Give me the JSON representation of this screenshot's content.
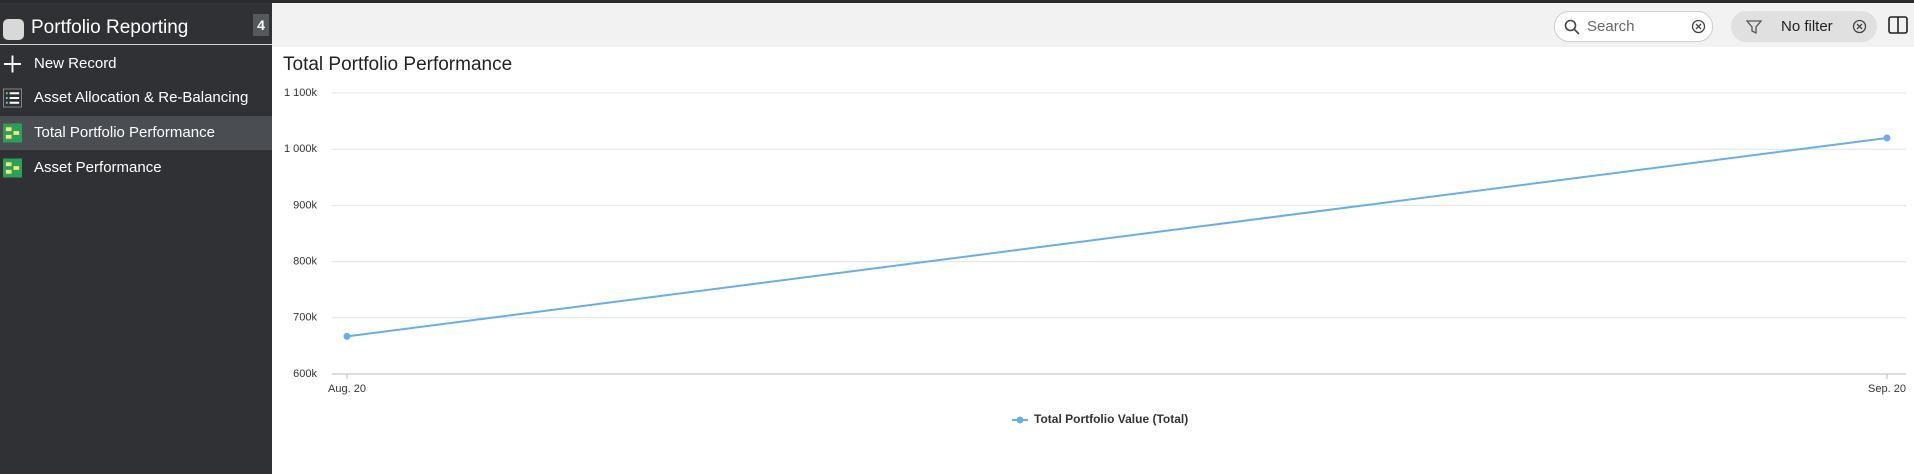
{
  "sidebar": {
    "title": "Portfolio Reporting",
    "badge": 4,
    "items": [
      "New Record",
      "Asset Allocation & Re-Balancing",
      "Total Portfolio Performance",
      "Asset Performance"
    ]
  },
  "toolbar": {
    "search_placeholder": "Search",
    "filter": "No filter"
  },
  "chart_data": {
    "type": "line",
    "title": "Total Portfolio Performance",
    "categories": [
      "Aug. 20",
      "Sep. 20"
    ],
    "series": [
      {
        "name": "Total Portfolio Value (Total)",
        "color": "#6aaee6",
        "values": [
          667000,
          1020000
        ]
      }
    ],
    "ylim": [
      600000,
      1100000
    ],
    "yticks": [
      {
        "value": 600000,
        "label": "600k"
      },
      {
        "value": 700000,
        "label": "700k"
      },
      {
        "value": 800000,
        "label": "800k"
      },
      {
        "value": 900000,
        "label": "900k"
      },
      {
        "value": 1000000,
        "label": "1 000k"
      },
      {
        "value": 1100000,
        "label": "1 100k"
      }
    ],
    "grid": true,
    "legend": "bottom"
  }
}
